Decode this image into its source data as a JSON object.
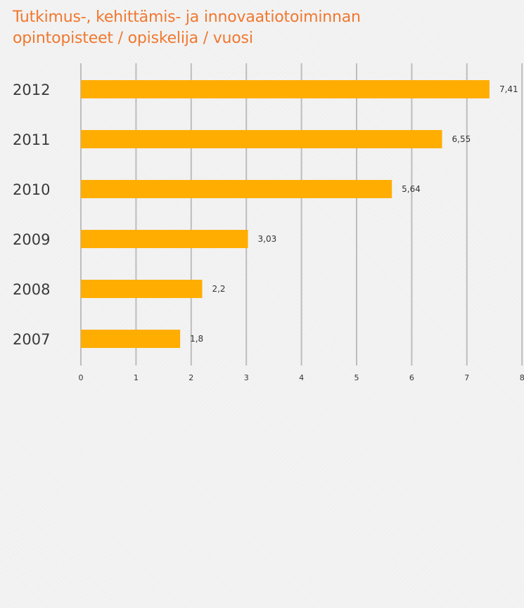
{
  "title_line1": "Tutkimus-, kehittämis- ja innovaatiotoiminnan",
  "title_line2": "opintopisteet / opiskelija / vuosi",
  "colors": {
    "bar": "#ffad00",
    "title": "#f0782f",
    "grid": "#bdbdbd"
  },
  "chart_data": {
    "type": "bar",
    "orientation": "horizontal",
    "title": "Tutkimus-, kehittämis- ja innovaatiotoiminnan opintopisteet / opiskelija / vuosi",
    "categories": [
      "2012",
      "2011",
      "2010",
      "2009",
      "2008",
      "2007"
    ],
    "values": [
      7.41,
      6.55,
      5.64,
      3.03,
      2.2,
      1.8
    ],
    "value_labels": [
      "7,41",
      "6,55",
      "5,64",
      "3,03",
      "2,2",
      "1,8"
    ],
    "xlim": [
      0,
      8
    ],
    "xticks": [
      "0",
      "1",
      "2",
      "3",
      "4",
      "5",
      "6",
      "7",
      "8"
    ],
    "grid": true,
    "legend": "none"
  }
}
